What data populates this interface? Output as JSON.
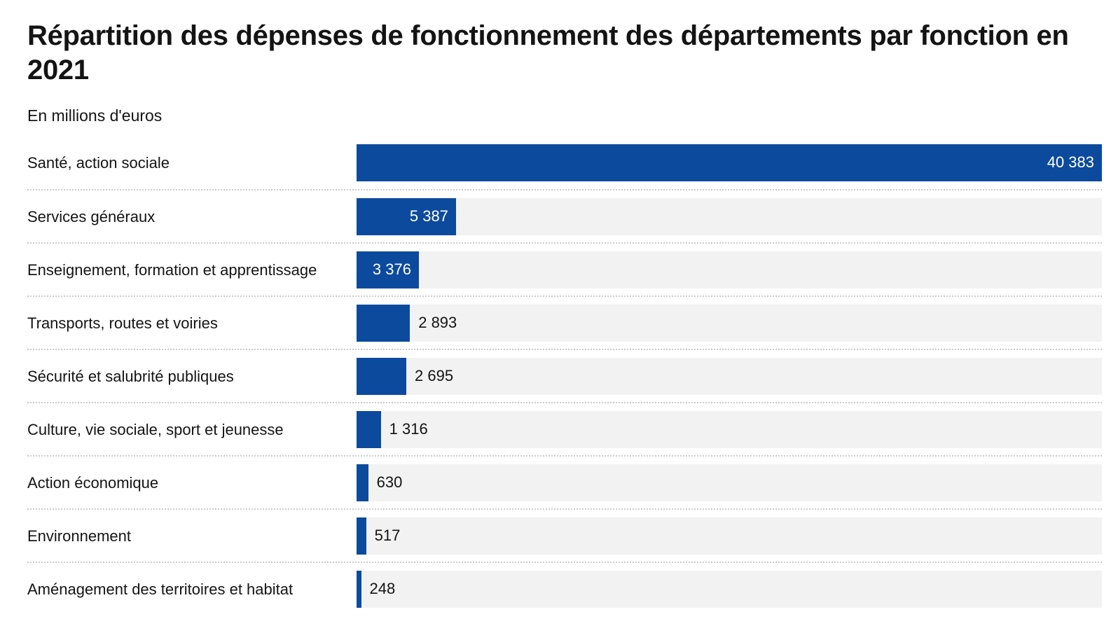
{
  "header": {
    "title": "Répartition des dépenses de fonctionnement des départements par fonction en 2021",
    "subtitle": "En millions d'euros"
  },
  "colors": {
    "bar": "#0c4a9e",
    "track": "#f2f2f2",
    "separator": "#cccccc",
    "text": "#141414",
    "value_inside": "#ffffff",
    "background": "#ffffff"
  },
  "chart_data": {
    "type": "bar",
    "orientation": "horizontal",
    "title": "Répartition des dépenses de fonctionnement des départements par fonction en 2021",
    "unit_label": "En millions d'euros",
    "categories": [
      "Santé, action sociale",
      "Services généraux",
      "Enseignement, formation et apprentissage",
      "Transports, routes et voiries",
      "Sécurité et salubrité publiques",
      "Culture, vie sociale, sport et jeunesse",
      "Action économique",
      "Environnement",
      "Aménagement des territoires et habitat"
    ],
    "values": [
      40383,
      5387,
      3376,
      2893,
      2695,
      1316,
      630,
      517,
      248
    ],
    "value_labels": [
      "40 383",
      "5 387",
      "3 376",
      "2 893",
      "2 695",
      "1 316",
      "630",
      "517",
      "248"
    ],
    "xlim": [
      0,
      40383
    ],
    "grid": false,
    "legend": false,
    "row_separator": "dotted",
    "value_label_inside": [
      true,
      true,
      true,
      false,
      false,
      false,
      false,
      false,
      false
    ]
  }
}
